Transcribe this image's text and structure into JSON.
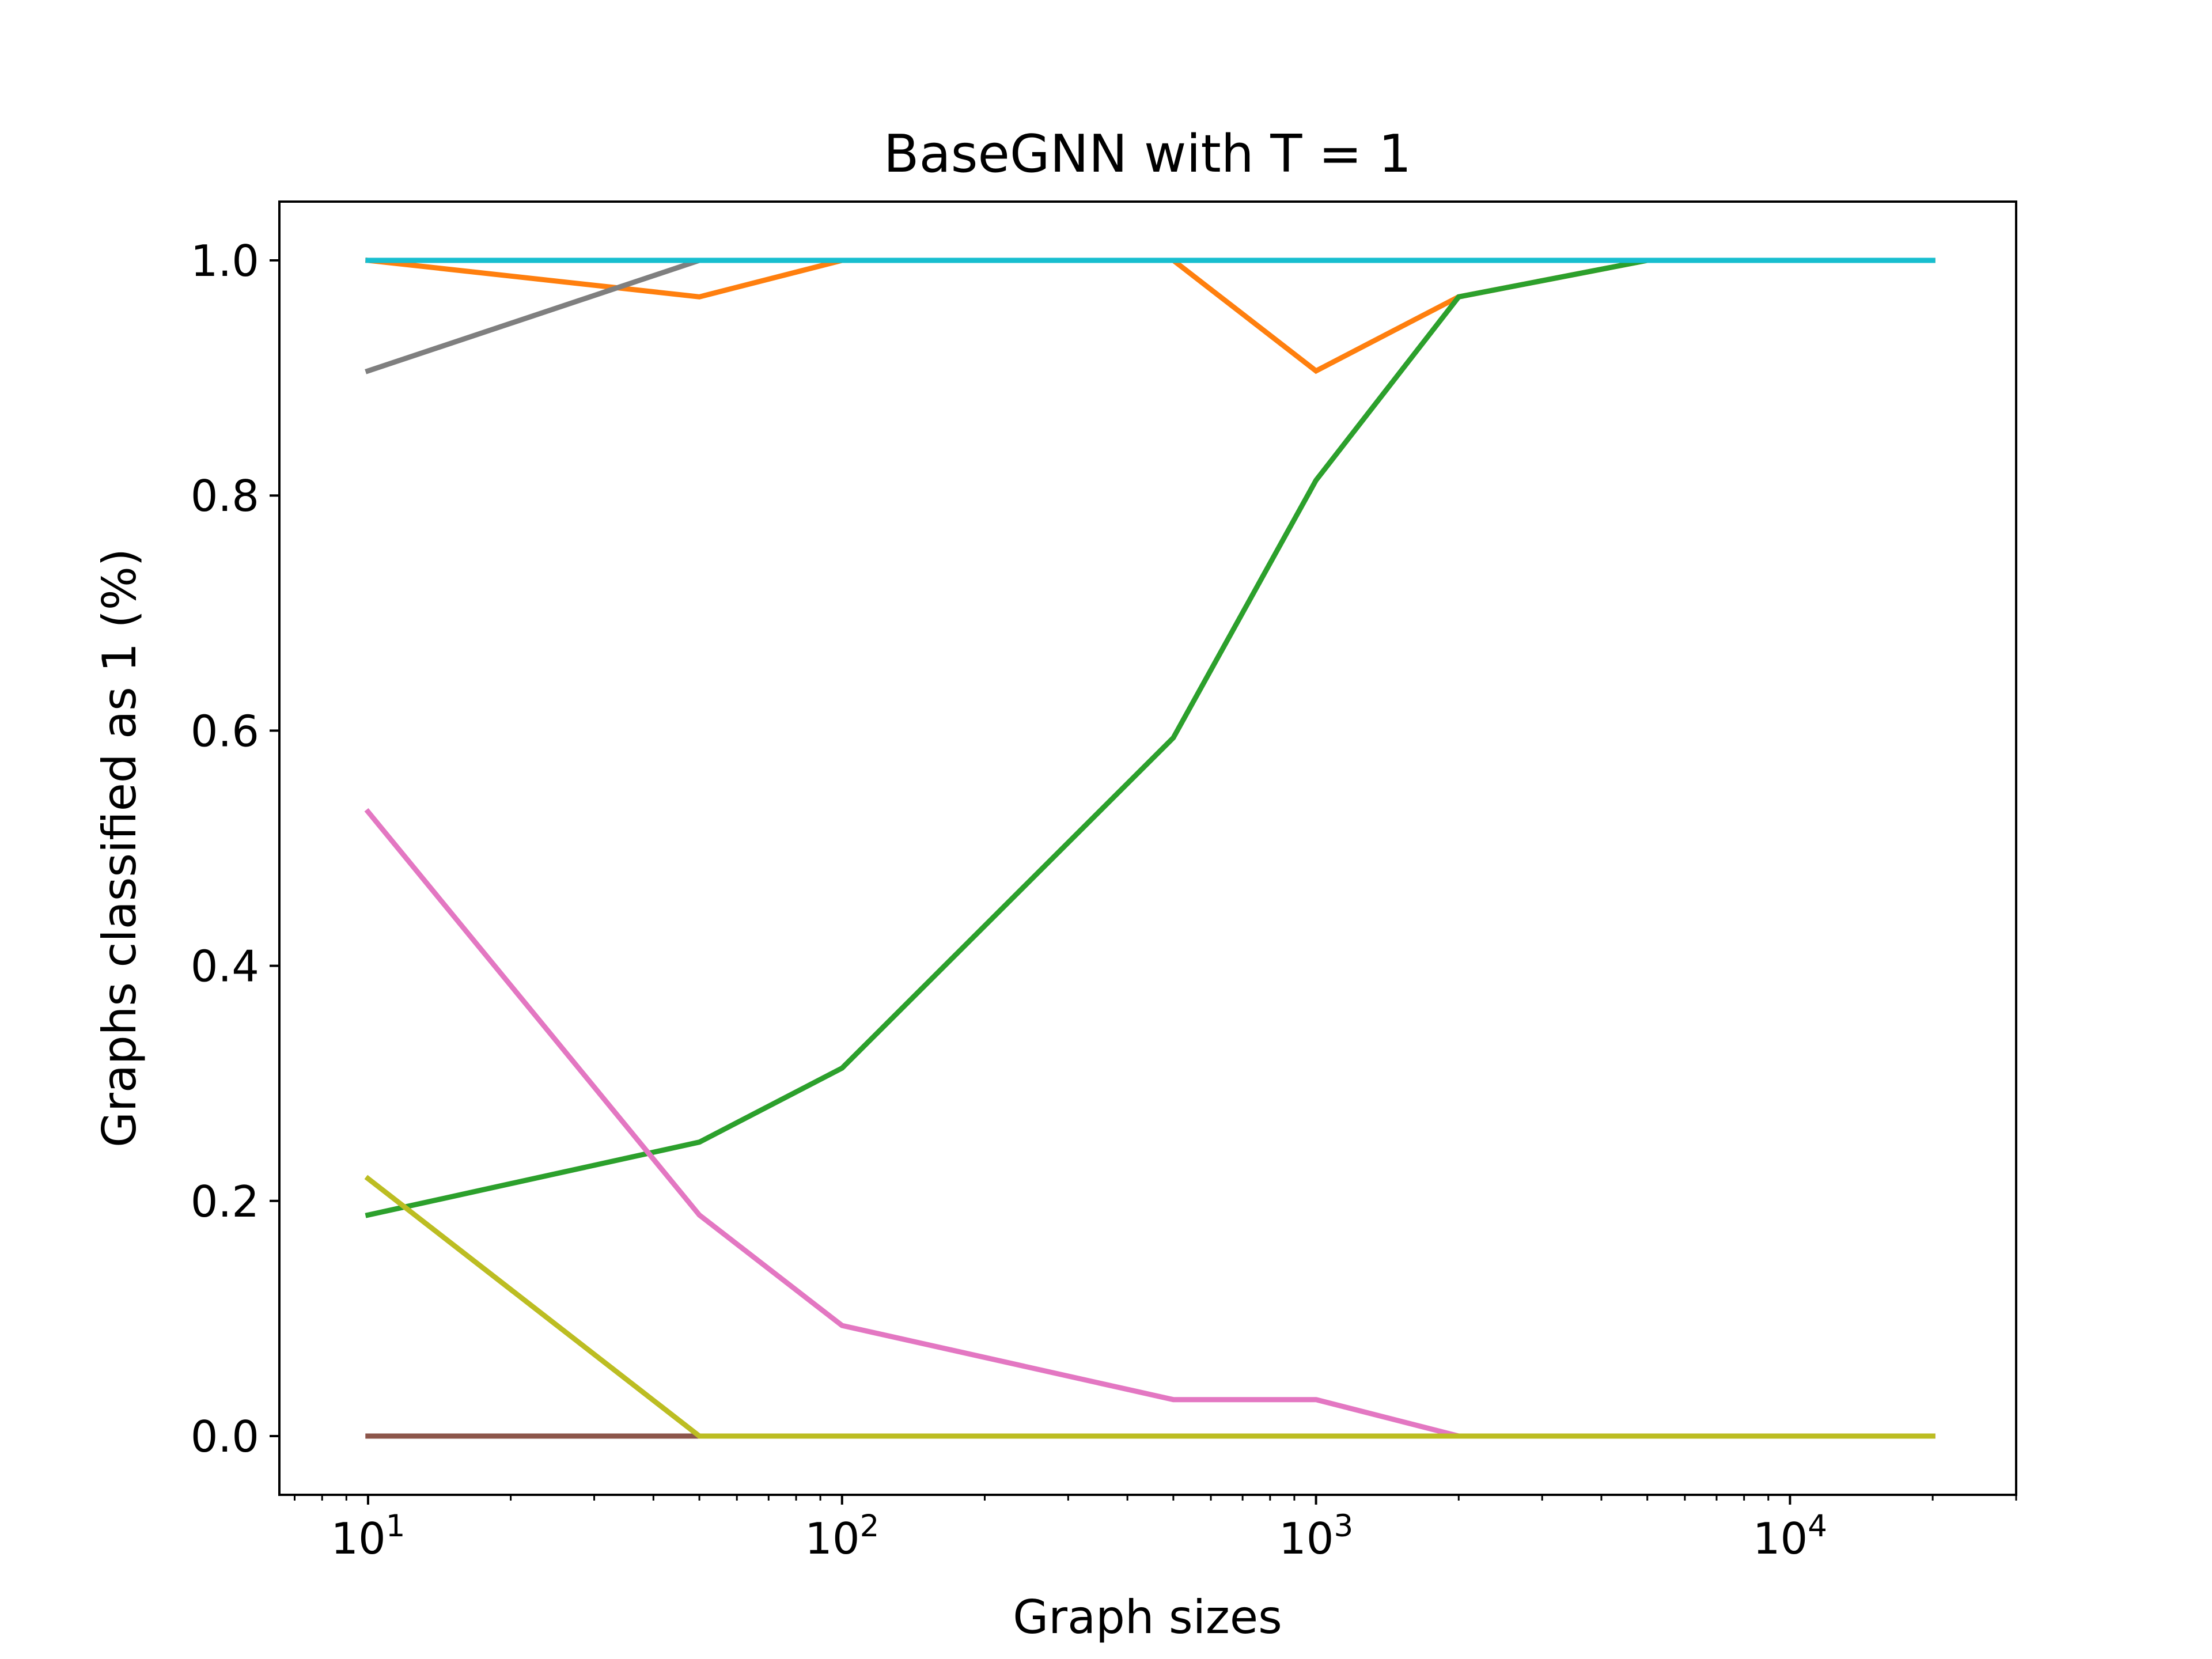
{
  "chart_data": {
    "type": "line",
    "title": "BaseGNN with T = 1",
    "xlabel": "Graph sizes",
    "ylabel": "Graphs classified as 1 (%)",
    "xscale": "log",
    "xlim": [
      6.5,
      30000
    ],
    "ylim": [
      -0.05,
      1.05
    ],
    "grid": false,
    "x": [
      10,
      50,
      100,
      500,
      1000,
      2000,
      5000,
      20000
    ],
    "xticks": [
      10,
      100,
      1000,
      10000
    ],
    "xtick_labels": [
      {
        "base": "10",
        "exp": "1"
      },
      {
        "base": "10",
        "exp": "2"
      },
      {
        "base": "10",
        "exp": "3"
      },
      {
        "base": "10",
        "exp": "4"
      }
    ],
    "yticks": [
      0.0,
      0.2,
      0.4,
      0.6,
      0.8,
      1.0
    ],
    "ytick_labels": [
      "0.0",
      "0.2",
      "0.4",
      "0.6",
      "0.8",
      "1.0"
    ],
    "series": [
      {
        "color": "#1f77b4",
        "values": [
          1.0,
          1.0,
          1.0,
          1.0,
          1.0,
          1.0,
          1.0,
          1.0
        ]
      },
      {
        "color": "#ff7f0e",
        "values": [
          1.0,
          0.969,
          1.0,
          1.0,
          0.906,
          0.969,
          1.0,
          1.0
        ]
      },
      {
        "color": "#2ca02c",
        "values": [
          0.188,
          0.25,
          0.313,
          0.594,
          0.813,
          0.969,
          1.0,
          1.0
        ]
      },
      {
        "color": "#d62728",
        "values": [
          0.0,
          0.0,
          0.0,
          0.0,
          0.0,
          0.0,
          0.0,
          0.0
        ]
      },
      {
        "color": "#9467bd",
        "values": [
          0.0,
          0.0,
          0.0,
          0.0,
          0.0,
          0.0,
          0.0,
          0.0
        ]
      },
      {
        "color": "#8c564b",
        "values": [
          0.0,
          0.0,
          0.0,
          0.0,
          0.0,
          0.0,
          0.0,
          0.0
        ]
      },
      {
        "color": "#e377c2",
        "values": [
          0.531,
          0.188,
          0.094,
          0.031,
          0.031,
          0.0,
          0.0,
          0.0
        ]
      },
      {
        "color": "#7f7f7f",
        "values": [
          0.906,
          1.0,
          1.0,
          1.0,
          1.0,
          1.0,
          1.0,
          1.0
        ]
      },
      {
        "color": "#bcbd22",
        "values": [
          0.219,
          0.0,
          0.0,
          0.0,
          0.0,
          0.0,
          0.0,
          0.0
        ]
      },
      {
        "color": "#17becf",
        "values": [
          1.0,
          1.0,
          1.0,
          1.0,
          1.0,
          1.0,
          1.0,
          1.0
        ]
      }
    ]
  }
}
